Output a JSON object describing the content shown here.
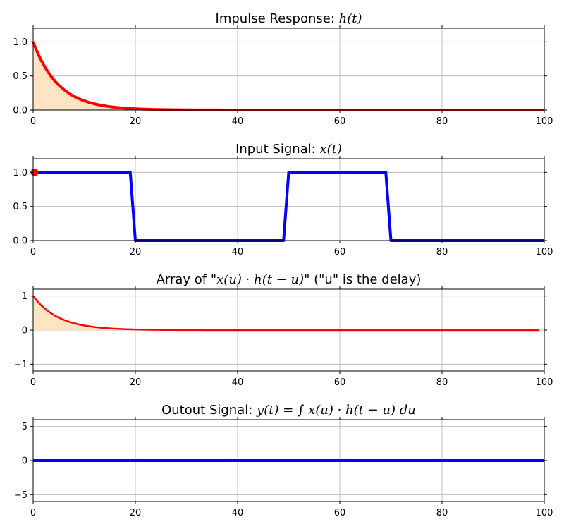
{
  "colors": {
    "impulse_line": "#ff0000",
    "impulse_fill": "#ffe4c4",
    "input_line": "#0000ff",
    "input_marker": "#ff0000",
    "output_line": "#0000ff",
    "grid": "#b0b0b0"
  },
  "chart_data": [
    {
      "type": "area",
      "title_parts": [
        {
          "text": "Impulse Response: ",
          "math": false
        },
        {
          "text": "h(t)",
          "math": true
        }
      ],
      "xlim": [
        0,
        100
      ],
      "ylim": [
        0,
        1.2
      ],
      "xticks": [
        0,
        20,
        40,
        60,
        80,
        100
      ],
      "yticks": [
        0.0,
        0.5,
        1.0
      ],
      "ytick_labels": [
        "0.0",
        "0.5",
        "1.0"
      ],
      "grid": true,
      "series": [
        {
          "function": "exp(-t/5)",
          "x_range": [
            0,
            100
          ],
          "line_color": "impulse_line",
          "fill": true
        }
      ]
    },
    {
      "type": "line",
      "title_parts": [
        {
          "text": "Input Signal:  ",
          "math": false
        },
        {
          "text": "x(t)",
          "math": true
        }
      ],
      "xlim": [
        0,
        100
      ],
      "ylim": [
        0,
        1.2
      ],
      "xticks": [
        0,
        20,
        40,
        60,
        80,
        100
      ],
      "yticks": [
        0.0,
        0.5,
        1.0
      ],
      "ytick_labels": [
        "0.0",
        "0.5",
        "1.0"
      ],
      "grid": true,
      "series": [
        {
          "x": [
            0,
            19,
            20,
            49,
            50,
            69,
            70,
            100
          ],
          "y": [
            1,
            1,
            0,
            0,
            1,
            1,
            0,
            0
          ],
          "line_color": "input_line"
        }
      ],
      "marker": {
        "x": 0,
        "y": 1,
        "color": "input_marker"
      }
    },
    {
      "type": "area",
      "title_parts": [
        {
          "text": "Array of  \"",
          "math": false
        },
        {
          "text": "x(u) · h(t − u)",
          "math": true
        },
        {
          "text": "\"   (\"u\" is the delay)",
          "math": false
        }
      ],
      "xlim": [
        0,
        100
      ],
      "ylim": [
        -1.2,
        1.2
      ],
      "xticks": [
        0,
        20,
        40,
        60,
        80,
        100
      ],
      "yticks": [
        -1,
        0,
        1
      ],
      "ytick_labels": [
        "−1",
        "0",
        "1"
      ],
      "grid": true,
      "series": [
        {
          "function": "exp(-t/5)",
          "x_range": [
            0,
            99
          ],
          "line_color": "impulse_line",
          "fill": true
        }
      ]
    },
    {
      "type": "line",
      "title_parts": [
        {
          "text": "Outout Signal:  ",
          "math": false
        },
        {
          "text": "y(t) = ∫ x(u) · h(t − u) du",
          "math": true
        }
      ],
      "xlim": [
        0,
        100
      ],
      "ylim": [
        -6,
        6
      ],
      "xticks": [
        0,
        20,
        40,
        60,
        80,
        100
      ],
      "yticks": [
        -5,
        0,
        5
      ],
      "ytick_labels": [
        "−5",
        "0",
        "5"
      ],
      "grid": true,
      "series": [
        {
          "x": [
            0,
            100
          ],
          "y": [
            0,
            0
          ],
          "line_color": "output_line"
        }
      ]
    }
  ]
}
